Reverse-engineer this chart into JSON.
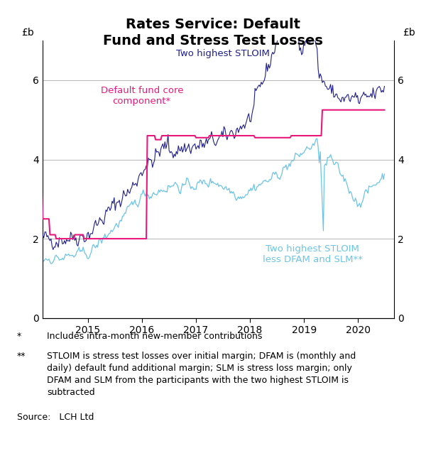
{
  "title": "Rates Service: Default\nFund and Stress Test Losses",
  "ylabel_left": "£b",
  "ylabel_right": "£b",
  "ylim": [
    0,
    7.0
  ],
  "yticks": [
    0,
    2,
    4,
    6
  ],
  "color_stloim": "#1F1F8F",
  "color_default_fund": "#E8197D",
  "color_stloim_less": "#6BC5E8",
  "footnote1_bullet": "*",
  "footnote1_text": "Includes intra-month new-member contributions",
  "footnote2_bullet": "**",
  "footnote2_text": "STLOIM is stress test losses over initial margin; DFAM is (monthly and\ndaily) default fund additional margin; SLM is stress loss margin; only\nDFAM and SLM from the participants with the two highest STLOIM is\nsubtracted",
  "source": "Source:   LCH Ltd",
  "label_stloim": "Two highest STLOIM",
  "label_default_fund": "Default fund core\ncomponent*",
  "label_stloim_less": "Two highest STLOIM\nless DFAM and SLM**",
  "background_color": "#FFFFFF",
  "grid_color": "#AAAAAA"
}
